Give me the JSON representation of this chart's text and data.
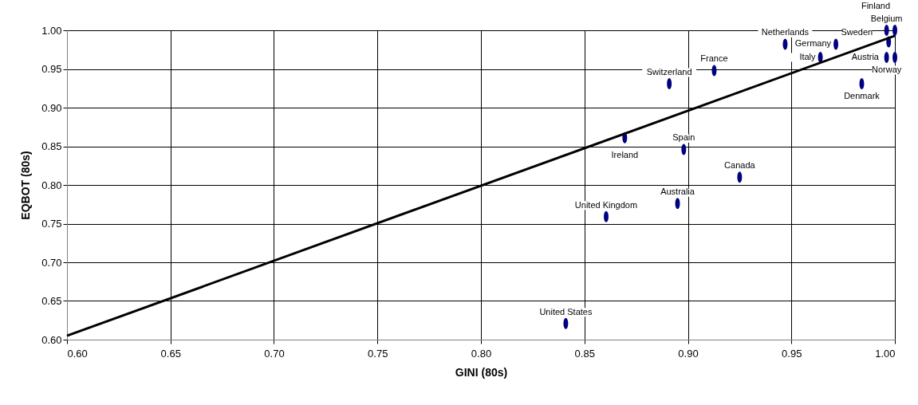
{
  "chart_data": {
    "type": "scatter",
    "xlabel": "GINI (80s)",
    "ylabel": "EQBOT (80s)",
    "xlim": [
      0.6,
      1.0
    ],
    "ylim": [
      0.6,
      1.0
    ],
    "xticks": [
      {
        "value": 0.6,
        "label": "0.60"
      },
      {
        "value": 0.65,
        "label": "0.65"
      },
      {
        "value": 0.7,
        "label": "0.70"
      },
      {
        "value": 0.75,
        "label": "0.75"
      },
      {
        "value": 0.8,
        "label": "0.80"
      },
      {
        "value": 0.85,
        "label": "0.85"
      },
      {
        "value": 0.9,
        "label": "0.90"
      },
      {
        "value": 0.95,
        "label": "0.95"
      },
      {
        "value": 1.0,
        "label": "1.00"
      }
    ],
    "yticks": [
      {
        "value": 0.6,
        "label": "0.60"
      },
      {
        "value": 0.65,
        "label": "0.65"
      },
      {
        "value": 0.7,
        "label": "0.70"
      },
      {
        "value": 0.75,
        "label": "0.75"
      },
      {
        "value": 0.8,
        "label": "0.80"
      },
      {
        "value": 0.85,
        "label": "0.85"
      },
      {
        "value": 0.9,
        "label": "0.90"
      },
      {
        "value": 0.95,
        "label": "0.95"
      },
      {
        "value": 1.0,
        "label": "1.00"
      }
    ],
    "grid": true,
    "series": [
      {
        "type": "scatter",
        "color": "#000080",
        "x": [
          0.841,
          0.8605,
          0.895,
          0.8695,
          0.898,
          0.925,
          0.891,
          0.9127,
          0.947,
          0.9715,
          0.964,
          0.984,
          0.996,
          1.0,
          0.997,
          0.996,
          1.0
        ],
        "values": [
          0.621,
          0.759,
          0.776,
          0.861,
          0.846,
          0.81,
          0.931,
          0.948,
          0.982,
          0.982,
          0.965,
          0.931,
          1.0,
          1.0,
          0.985,
          0.965,
          0.965
        ]
      },
      {
        "type": "line",
        "color": "#000000",
        "x": [
          0.6,
          1.0
        ],
        "values": [
          0.605,
          0.993
        ]
      }
    ],
    "annotations": [
      {
        "text": "United States",
        "x": 0.841,
        "y": 0.621
      },
      {
        "text": "United Kingdom",
        "x": 0.8605,
        "y": 0.759
      },
      {
        "text": "Australia",
        "x": 0.895,
        "y": 0.776
      },
      {
        "text": "Ireland",
        "x": 0.8695,
        "y": 0.861
      },
      {
        "text": "Spain",
        "x": 0.898,
        "y": 0.846
      },
      {
        "text": "Canada",
        "x": 0.925,
        "y": 0.81
      },
      {
        "text": "Switzerland",
        "x": 0.891,
        "y": 0.931
      },
      {
        "text": "France",
        "x": 0.9127,
        "y": 0.948
      },
      {
        "text": "Netherlands",
        "x": 0.947,
        "y": 0.982
      },
      {
        "text": "Germany",
        "x": 0.9715,
        "y": 0.982
      },
      {
        "text": "Italy",
        "x": 0.964,
        "y": 0.965
      },
      {
        "text": "Denmark",
        "x": 0.984,
        "y": 0.931
      },
      {
        "text": "Belgium",
        "x": 0.996,
        "y": 1.0
      },
      {
        "text": "Finland",
        "x": 1.0,
        "y": 1.0
      },
      {
        "text": "Sweden",
        "x": 0.997,
        "y": 0.985
      },
      {
        "text": "Norway",
        "x": 0.996,
        "y": 0.965
      },
      {
        "text": "Austria",
        "x": 1.0,
        "y": 0.965
      }
    ]
  }
}
